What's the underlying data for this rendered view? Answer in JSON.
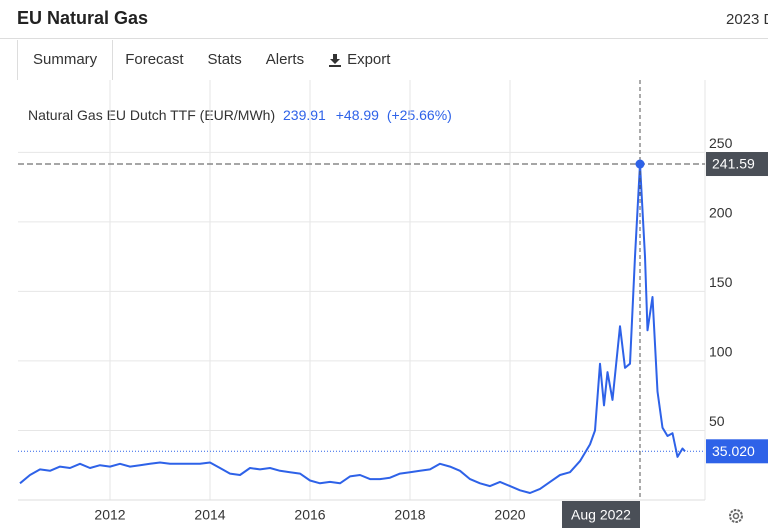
{
  "header": {
    "title": "EU Natural Gas",
    "right_note": "2023 D"
  },
  "tabs": [
    "Summary",
    "Forecast",
    "Stats",
    "Alerts",
    "Export"
  ],
  "chart_data": {
    "type": "line",
    "legend_title": "Natural Gas EU Dutch TTF (EUR/MWh)",
    "legend_price": "239.91",
    "legend_change": "+48.99",
    "legend_change_pct": "(+25.66%)",
    "x": [
      2010.2,
      2010.4,
      2010.6,
      2010.8,
      2011.0,
      2011.2,
      2011.4,
      2011.6,
      2011.8,
      2012.0,
      2012.2,
      2012.4,
      2012.6,
      2012.8,
      2013.0,
      2013.2,
      2013.4,
      2013.6,
      2013.8,
      2014.0,
      2014.2,
      2014.4,
      2014.6,
      2014.8,
      2015.0,
      2015.2,
      2015.4,
      2015.6,
      2015.8,
      2016.0,
      2016.2,
      2016.4,
      2016.6,
      2016.8,
      2017.0,
      2017.2,
      2017.4,
      2017.6,
      2017.8,
      2018.0,
      2018.2,
      2018.4,
      2018.6,
      2018.8,
      2019.0,
      2019.2,
      2019.4,
      2019.6,
      2019.8,
      2020.0,
      2020.2,
      2020.4,
      2020.6,
      2020.8,
      2021.0,
      2021.2,
      2021.4,
      2021.6,
      2021.7,
      2021.8,
      2021.88,
      2021.95,
      2022.05,
      2022.2,
      2022.3,
      2022.4,
      2022.5,
      2022.6,
      2022.7,
      2022.75,
      2022.85,
      2022.95,
      2023.05,
      2023.15,
      2023.25,
      2023.35,
      2023.45,
      2023.5
    ],
    "series": [
      {
        "name": "Natural Gas EU Dutch TTF",
        "color": "#2e62e8",
        "values": [
          12,
          18,
          22,
          21,
          24,
          23,
          26,
          23,
          25,
          24,
          26,
          24,
          25,
          26,
          27,
          26,
          26,
          26,
          26,
          27,
          23,
          19,
          18,
          23,
          22,
          23,
          21,
          20,
          19,
          14,
          12,
          13,
          12,
          17,
          18,
          15,
          15,
          16,
          19,
          20,
          21,
          22,
          26,
          24,
          21,
          15,
          12,
          10,
          13,
          10,
          7,
          5,
          8,
          13,
          18,
          20,
          28,
          40,
          50,
          98,
          68,
          92,
          72,
          125,
          95,
          98,
          175,
          241.59,
          175,
          122,
          146,
          78,
          52,
          46,
          48,
          31,
          37,
          35.02
        ]
      }
    ],
    "xlim": [
      2010.16,
      2023.9
    ],
    "ylim": [
      0,
      302
    ],
    "xticks": [
      2012,
      2014,
      2016,
      2018,
      2020
    ],
    "yticks": [
      50,
      100,
      150,
      200,
      250
    ],
    "grid": true,
    "hover": {
      "x": 2022.6,
      "x_label": "Aug 2022",
      "value": 241.59
    },
    "current": {
      "value": 35.02,
      "label": "35.020"
    }
  }
}
